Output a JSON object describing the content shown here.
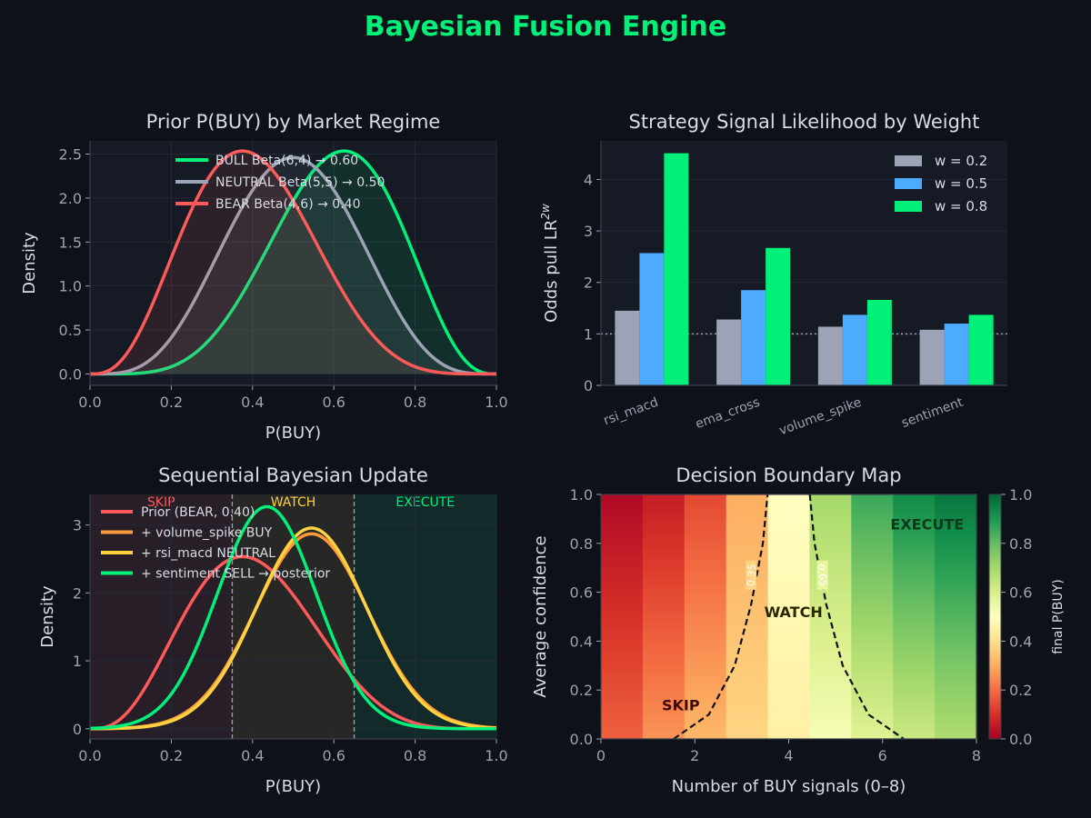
{
  "page_title": "Bayesian Fusion Engine",
  "colors": {
    "background": "#0e1117",
    "panel": "#151a24",
    "grid": "#232a37",
    "text": "#d8dce3",
    "tick": "#9aa3b2",
    "bull": "#00f07a",
    "neutral": "#9ba3b4",
    "bear": "#ff5a5a",
    "orange": "#ff9a3c",
    "yellow": "#ffd23f",
    "blue": "#4dabff",
    "title_green": "#00f07a"
  },
  "chart_data": [
    {
      "id": "prior",
      "type": "line",
      "title": "Prior P(BUY) by Market Regime",
      "xlabel": "P(BUY)",
      "ylabel": "Density",
      "xlim": [
        0,
        1
      ],
      "ylim": [
        -0.13,
        2.65
      ],
      "xticks": [
        "0.0",
        "0.2",
        "0.4",
        "0.6",
        "0.8",
        "1.0"
      ],
      "yticks": [
        "0.0",
        "0.5",
        "1.0",
        "1.5",
        "2.0",
        "2.5"
      ],
      "grid": true,
      "legend_position": "top-center",
      "series": [
        {
          "name": "BULL  Beta(6,4) → 0.60",
          "distribution": "beta",
          "a": 6,
          "b": 4,
          "color": "#00f07a",
          "fill": true
        },
        {
          "name": "NEUTRAL  Beta(5,5) → 0.50",
          "distribution": "beta",
          "a": 5,
          "b": 5,
          "color": "#9ba3b4",
          "fill": true
        },
        {
          "name": "BEAR  Beta(4,6) → 0.40",
          "distribution": "beta",
          "a": 4,
          "b": 6,
          "color": "#ff5a5a",
          "fill": true
        }
      ]
    },
    {
      "id": "likelihood",
      "type": "bar",
      "title": "Strategy Signal Likelihood by Weight",
      "ylabel": "Odds pull  LR",
      "ylabel_sup": "2w",
      "categories": [
        "rsi_macd",
        "ema_cross",
        "volume_spike",
        "sentiment"
      ],
      "ylim": [
        0,
        4.75
      ],
      "yticks": [
        "0",
        "1",
        "2",
        "3",
        "4"
      ],
      "reference_line": 1,
      "grid": true,
      "legend_position": "top-right",
      "series": [
        {
          "name": "w = 0.2",
          "color": "#9ba3b4",
          "values": [
            1.45,
            1.28,
            1.14,
            1.08
          ]
        },
        {
          "name": "w = 0.5",
          "color": "#4dabff",
          "values": [
            2.57,
            1.85,
            1.37,
            1.2
          ]
        },
        {
          "name": "w = 0.8",
          "color": "#00f07a",
          "values": [
            4.51,
            2.67,
            1.66,
            1.37
          ]
        }
      ]
    },
    {
      "id": "sequential",
      "type": "line",
      "title": "Sequential Bayesian Update",
      "xlabel": "P(BUY)",
      "ylabel": "Density",
      "xlim": [
        0,
        1
      ],
      "ylim": [
        -0.15,
        3.45
      ],
      "xticks": [
        "0.0",
        "0.2",
        "0.4",
        "0.6",
        "0.8",
        "1.0"
      ],
      "yticks": [
        "0",
        "1",
        "2",
        "3"
      ],
      "grid": true,
      "legend_position": "top-left",
      "zones": [
        {
          "label": "SKIP",
          "from": 0,
          "to": 0.35,
          "color": "#ff5a5a"
        },
        {
          "label": "WATCH",
          "from": 0.35,
          "to": 0.65,
          "color": "#ffd23f"
        },
        {
          "label": "EXECUTE",
          "from": 0.65,
          "to": 1,
          "color": "#00f07a"
        }
      ],
      "thresholds": [
        0.35,
        0.65
      ],
      "series": [
        {
          "name": "Prior (BEAR, 0.40)",
          "distribution": "beta",
          "a": 4,
          "b": 6,
          "color": "#ff5a5a"
        },
        {
          "name": "+ volume_spike BUY",
          "distribution": "normal",
          "mean": 0.545,
          "sd": 0.139,
          "color": "#ff9a3c"
        },
        {
          "name": "+ rsi_macd NEUTRAL",
          "distribution": "normal",
          "mean": 0.545,
          "sd": 0.135,
          "color": "#ffd23f"
        },
        {
          "name": "+ sentiment SELL → posterior",
          "distribution": "normal",
          "mean": 0.435,
          "sd": 0.122,
          "color": "#00f07a"
        }
      ]
    },
    {
      "id": "decision",
      "type": "heatmap",
      "title": "Decision Boundary Map",
      "xlabel": "Number of BUY signals (0–8)",
      "ylabel": "Average confidence",
      "xlim": [
        0,
        8
      ],
      "ylim": [
        0,
        1
      ],
      "xticks": [
        "0",
        "2",
        "4",
        "6",
        "8"
      ],
      "yticks": [
        "0.0",
        "0.2",
        "0.4",
        "0.6",
        "0.8",
        "1.0"
      ],
      "colorbar_label": "final P(BUY)",
      "colorbar_ticks": [
        "0.0",
        "0.2",
        "0.4",
        "0.6",
        "0.8",
        "1.0"
      ],
      "colormap": "RdYlGn",
      "columns": 9,
      "values_bottom_row": [
        0.18,
        0.26,
        0.32,
        0.38,
        0.45,
        0.52,
        0.58,
        0.63,
        0.68
      ],
      "values_top_row": [
        0.02,
        0.06,
        0.14,
        0.3,
        0.5,
        0.7,
        0.86,
        0.93,
        0.97
      ],
      "contours": [
        {
          "label": "0.35",
          "points": [
            [
              1.55,
              0
            ],
            [
              2.3,
              0.1
            ],
            [
              2.85,
              0.3
            ],
            [
              3.2,
              0.55
            ],
            [
              3.45,
              0.8
            ],
            [
              3.55,
              1.0
            ]
          ]
        },
        {
          "label": "0.65",
          "points": [
            [
              4.45,
              1.0
            ],
            [
              4.55,
              0.8
            ],
            [
              4.8,
              0.55
            ],
            [
              5.15,
              0.3
            ],
            [
              5.7,
              0.1
            ],
            [
              6.45,
              0
            ]
          ]
        }
      ],
      "annotations": [
        {
          "text": "SKIP",
          "x": 1.7,
          "y": 0.14,
          "color": "#3b0a0a"
        },
        {
          "text": "WATCH",
          "x": 4.1,
          "y": 0.52,
          "color": "#2a2600"
        },
        {
          "text": "EXECUTE",
          "x": 6.95,
          "y": 0.88,
          "color": "#0b3a1a"
        }
      ]
    }
  ]
}
